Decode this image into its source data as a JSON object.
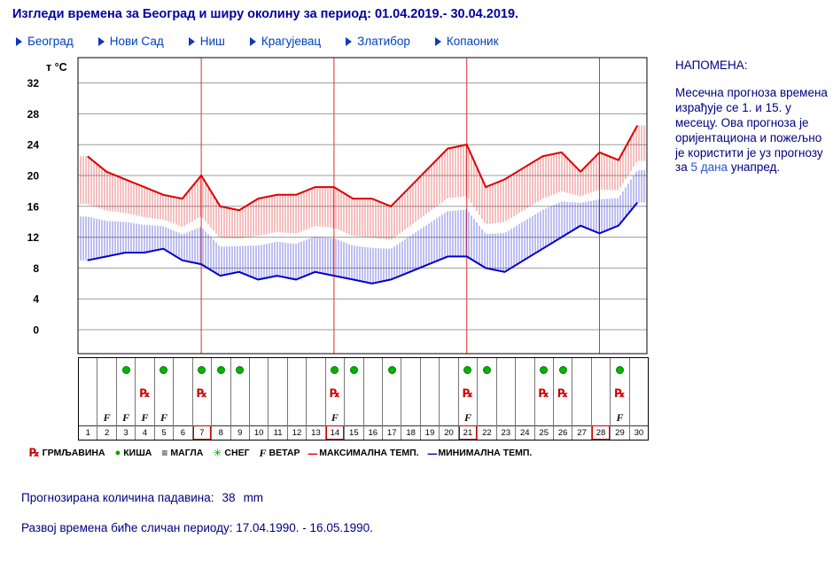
{
  "title": "Изгледи времена за Београд и ширу околину за период: 01.04.2019.- 30.04.2019.",
  "nav": {
    "items": [
      {
        "label": "Београд"
      },
      {
        "label": "Нови Сад"
      },
      {
        "label": "Ниш"
      },
      {
        "label": "Крагујевац"
      },
      {
        "label": "Златибор"
      },
      {
        "label": "Копаоник"
      }
    ]
  },
  "note": {
    "heading": "НАПОМЕНА:",
    "body_before_link": "Месечна прогноза времена израђује се 1. и 15. у месецу. Ова прогноза је оријентациона и пожељно је користити је уз прогнозу за ",
    "link": "5 дана",
    "body_after_link": " унапред."
  },
  "chart_data": {
    "type": "line",
    "ylabel": "т °C",
    "yticks": [
      0,
      4,
      8,
      12,
      16,
      20,
      24,
      28,
      32
    ],
    "ylim": [
      -3,
      35
    ],
    "days": [
      1,
      2,
      3,
      4,
      5,
      6,
      7,
      8,
      9,
      10,
      11,
      12,
      13,
      14,
      15,
      16,
      17,
      18,
      19,
      20,
      21,
      22,
      23,
      24,
      25,
      26,
      27,
      28,
      29,
      30
    ],
    "series": [
      {
        "name": "МАКСИМАЛНА ТЕМП.",
        "color": "#dd0000",
        "values": [
          22.5,
          20.5,
          19.5,
          18.5,
          17.5,
          17,
          20,
          16,
          15.5,
          17,
          17.5,
          17.5,
          18.5,
          18.5,
          17,
          17,
          16,
          18.5,
          21,
          23.5,
          24,
          18.5,
          19.5,
          21,
          22.5,
          23,
          20.5,
          23,
          22,
          26.5
        ]
      },
      {
        "name": "МИНИМАЛНА ТЕМП.",
        "color": "#0000cc",
        "values": [
          9,
          9.5,
          10,
          10,
          10.5,
          9,
          8.5,
          7,
          7.5,
          6.5,
          7,
          6.5,
          7.5,
          7,
          6.5,
          6,
          6.5,
          7.5,
          8.5,
          9.5,
          9.5,
          8,
          7.5,
          9,
          10.5,
          12,
          13.5,
          12.5,
          13.5,
          16.5
        ]
      }
    ],
    "red_vertical_days": [
      7,
      14,
      21,
      28
    ],
    "icons": {
      "thunder_symbol": "℞",
      "wind_symbol": "F",
      "rain_days": [
        3,
        5,
        7,
        8,
        9,
        14,
        15,
        17,
        21,
        22,
        25,
        26,
        29
      ],
      "thunder_days": [
        4,
        7,
        14,
        21,
        25,
        26,
        29
      ],
      "wind_days": [
        2,
        3,
        4,
        5,
        14,
        21,
        29
      ],
      "boxed_days": [
        7,
        14,
        21,
        28
      ]
    }
  },
  "legend": {
    "items": [
      {
        "symbol": "℞",
        "label": "ГРМЉАВИНА"
      },
      {
        "symbol": "●",
        "label": "КИША"
      },
      {
        "symbol": "≡",
        "label": "МАГЛА"
      },
      {
        "symbol": "✳",
        "label": "СНЕГ"
      },
      {
        "symbol": "F",
        "label": "ВЕТАР"
      },
      {
        "symbol": "–",
        "label": "МАКСИМАЛНА ТЕМП."
      },
      {
        "symbol": "–",
        "label": "МИНИМАЛНА ТЕМП."
      }
    ]
  },
  "footer": {
    "precip_label": "Прогнозирана количина падавина:",
    "precip_value": "38",
    "precip_unit": "mm",
    "analog_text": "Развој времена биће сличан периоду: 17.04.1990. - 16.05.1990."
  },
  "colors": {
    "title_text": "#0000a0",
    "body_text": "#000080",
    "nav_link": "#0040c0",
    "max_temp": "#dd0000",
    "min_temp": "#0000cc",
    "rain_icon": "#00b400",
    "grid_vertical": "#e23030"
  }
}
